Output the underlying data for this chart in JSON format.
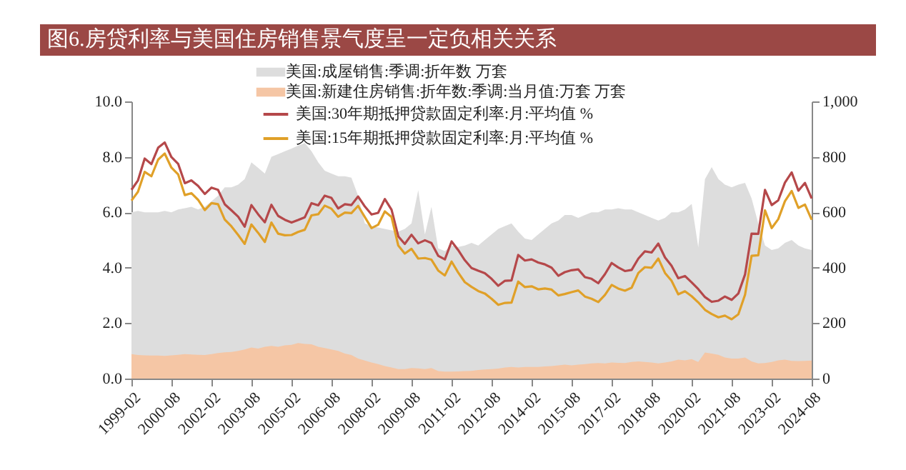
{
  "chart_data": {
    "type": "line",
    "title": "图6.房贷利率与美国住房销售景气度呈一定负相关关系",
    "x": [
      "1999-02",
      "1999-05",
      "1999-08",
      "1999-11",
      "2000-02",
      "2000-05",
      "2000-08",
      "2000-11",
      "2001-02",
      "2001-05",
      "2001-08",
      "2001-11",
      "2002-02",
      "2002-05",
      "2002-08",
      "2002-11",
      "2003-02",
      "2003-05",
      "2003-08",
      "2003-11",
      "2004-02",
      "2004-05",
      "2004-08",
      "2004-11",
      "2005-02",
      "2005-05",
      "2005-08",
      "2005-11",
      "2006-02",
      "2006-05",
      "2006-08",
      "2006-11",
      "2007-02",
      "2007-05",
      "2007-08",
      "2007-11",
      "2008-02",
      "2008-05",
      "2008-08",
      "2008-11",
      "2009-02",
      "2009-05",
      "2009-08",
      "2009-11",
      "2010-02",
      "2010-05",
      "2010-08",
      "2010-11",
      "2011-02",
      "2011-05",
      "2011-08",
      "2011-11",
      "2012-02",
      "2012-05",
      "2012-08",
      "2012-11",
      "2013-02",
      "2013-05",
      "2013-08",
      "2013-11",
      "2014-02",
      "2014-05",
      "2014-08",
      "2014-11",
      "2015-02",
      "2015-05",
      "2015-08",
      "2015-11",
      "2016-02",
      "2016-05",
      "2016-08",
      "2016-11",
      "2017-02",
      "2017-05",
      "2017-08",
      "2017-11",
      "2018-02",
      "2018-05",
      "2018-08",
      "2018-11",
      "2019-02",
      "2019-05",
      "2019-08",
      "2019-11",
      "2020-02",
      "2020-05",
      "2020-08",
      "2020-11",
      "2021-02",
      "2021-05",
      "2021-08",
      "2021-11",
      "2022-02",
      "2022-05",
      "2022-08",
      "2022-11",
      "2023-02",
      "2023-05",
      "2023-08",
      "2023-11",
      "2024-02",
      "2024-05",
      "2024-08"
    ],
    "xlim": [
      "1999-02",
      "2024-08"
    ],
    "xticks": [
      "1999-02",
      "2000-08",
      "2002-02",
      "2003-08",
      "2005-02",
      "2006-08",
      "2008-02",
      "2009-08",
      "2011-02",
      "2012-08",
      "2014-02",
      "2015-08",
      "2017-02",
      "2018-08",
      "2020-02",
      "2021-08",
      "2023-02",
      "2024-08"
    ],
    "ylim": [
      0,
      10
    ],
    "yticks": [
      {
        "value": 0,
        "label": "0.0"
      },
      {
        "value": 2,
        "label": "2.0"
      },
      {
        "value": 4,
        "label": "4.0"
      },
      {
        "value": 6,
        "label": "6.0"
      },
      {
        "value": 8,
        "label": "8.0"
      },
      {
        "value": 10,
        "label": "10.0"
      }
    ],
    "y2lim": [
      0,
      1000
    ],
    "y2ticks": [
      0,
      200,
      400,
      600,
      800,
      {
        "value": 1000,
        "label": "1,000"
      }
    ],
    "legend": "top",
    "series": [
      {
        "name": "美国:成屋销售:季调:折年数 万套",
        "type": "area",
        "axis": "y2",
        "color": "#dddddd",
        "values": [
          600,
          605,
          600,
          600,
          600,
          605,
          600,
          610,
          615,
          620,
          610,
          620,
          640,
          660,
          690,
          690,
          700,
          720,
          780,
          760,
          740,
          800,
          810,
          820,
          830,
          840,
          850,
          820,
          780,
          750,
          740,
          730,
          730,
          725,
          660,
          560,
          550,
          545,
          540,
          535,
          530,
          540,
          560,
          680,
          520,
          620,
          470,
          460,
          480,
          475,
          480,
          490,
          480,
          500,
          520,
          540,
          550,
          560,
          530,
          505,
          500,
          520,
          540,
          560,
          570,
          590,
          590,
          580,
          590,
          600,
          600,
          610,
          610,
          615,
          610,
          610,
          600,
          590,
          580,
          570,
          580,
          600,
          600,
          610,
          630,
          474,
          720,
          763,
          720,
          700,
          690,
          700,
          706,
          650,
          560,
          480,
          464,
          470,
          490,
          500,
          480,
          470,
          464
        ]
      },
      {
        "name": "美国:新建住房销售:折年数:季调:当月值:万套 万套",
        "type": "area",
        "axis": "y2",
        "color": "#f5c6a5",
        "values": [
          88,
          85,
          84,
          83,
          83,
          82,
          84,
          86,
          88,
          87,
          86,
          85,
          88,
          92,
          95,
          96,
          100,
          105,
          112,
          108,
          115,
          118,
          115,
          120,
          122,
          128,
          125,
          124,
          115,
          110,
          105,
          100,
          90,
          85,
          72,
          65,
          58,
          52,
          45,
          40,
          34,
          34,
          38,
          37,
          34,
          38,
          27,
          25,
          25,
          26,
          27,
          28,
          31,
          33,
          34,
          36,
          40,
          42,
          40,
          42,
          42,
          42,
          44,
          45,
          48,
          50,
          48,
          50,
          52,
          55,
          56,
          55,
          58,
          57,
          56,
          60,
          62,
          60,
          58,
          55,
          58,
          62,
          68,
          66,
          70,
          60,
          94,
          90,
          86,
          76,
          72,
          72,
          76,
          62,
          55,
          56,
          60,
          66,
          68,
          64,
          63,
          64,
          65
        ]
      },
      {
        "name": "美国:30年期抵押贷款固定利率:月:平均值 %",
        "color": "#b5484a",
        "values": [
          6.81,
          7.15,
          7.94,
          7.74,
          8.33,
          8.52,
          7.99,
          7.75,
          7.05,
          7.15,
          6.95,
          6.66,
          6.89,
          6.81,
          6.29,
          6.07,
          5.84,
          5.48,
          6.26,
          5.93,
          5.64,
          6.27,
          5.87,
          5.73,
          5.63,
          5.72,
          5.82,
          6.33,
          6.25,
          6.6,
          6.52,
          6.14,
          6.29,
          6.26,
          6.57,
          6.21,
          5.92,
          5.98,
          6.48,
          6.09,
          5.13,
          4.86,
          5.19,
          4.88,
          4.99,
          4.89,
          4.43,
          4.3,
          4.95,
          4.64,
          4.27,
          3.99,
          3.89,
          3.8,
          3.6,
          3.35,
          3.53,
          3.54,
          4.46,
          4.26,
          4.3,
          4.19,
          4.12,
          4.0,
          3.71,
          3.84,
          3.91,
          3.94,
          3.66,
          3.6,
          3.44,
          3.77,
          4.17,
          4.01,
          3.88,
          3.92,
          4.33,
          4.59,
          4.55,
          4.87,
          4.37,
          4.07,
          3.62,
          3.7,
          3.47,
          3.23,
          2.94,
          2.77,
          2.81,
          2.96,
          2.84,
          3.07,
          3.76,
          5.23,
          5.22,
          6.81,
          6.26,
          6.43,
          7.07,
          7.44,
          6.78,
          7.06,
          6.5
        ]
      },
      {
        "name": "美国:15年期抵押贷款固定利率:月:平均值 %",
        "color": "#e0a028",
        "values": [
          6.42,
          6.74,
          7.46,
          7.3,
          7.9,
          8.12,
          7.61,
          7.37,
          6.62,
          6.69,
          6.45,
          6.08,
          6.33,
          6.29,
          5.74,
          5.49,
          5.18,
          4.86,
          5.56,
          5.26,
          4.93,
          5.63,
          5.23,
          5.17,
          5.18,
          5.29,
          5.37,
          5.89,
          5.93,
          6.24,
          6.13,
          5.84,
          5.99,
          5.97,
          6.23,
          5.83,
          5.43,
          5.55,
          6.03,
          5.83,
          4.8,
          4.51,
          4.68,
          4.33,
          4.35,
          4.29,
          3.9,
          3.72,
          4.22,
          3.83,
          3.48,
          3.31,
          3.16,
          3.07,
          2.88,
          2.66,
          2.73,
          2.74,
          3.5,
          3.3,
          3.33,
          3.22,
          3.25,
          3.21,
          3.0,
          3.05,
          3.12,
          3.18,
          2.96,
          2.88,
          2.76,
          3.02,
          3.38,
          3.25,
          3.17,
          3.28,
          3.81,
          4.02,
          4.0,
          4.33,
          3.81,
          3.53,
          3.04,
          3.15,
          2.97,
          2.75,
          2.48,
          2.33,
          2.21,
          2.27,
          2.14,
          2.32,
          3.03,
          4.43,
          4.45,
          6.07,
          5.43,
          5.75,
          6.4,
          6.77,
          6.16,
          6.28,
          5.73
        ]
      }
    ]
  }
}
